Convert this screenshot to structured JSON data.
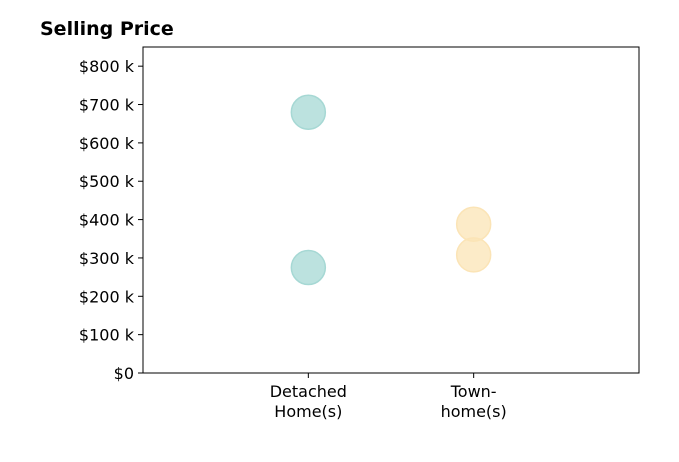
{
  "chart_data": {
    "type": "scatter",
    "title": "Selling Price",
    "xlabel": "",
    "ylabel": "",
    "categories": [
      "Detached\nHome(s)",
      "Town-\nhome(s)"
    ],
    "y_ticks": [
      "$0",
      "$100 k",
      "$200 k",
      "$300 k",
      "$400 k",
      "$500 k",
      "$600 k",
      "$700 k",
      "$800 k"
    ],
    "y_tick_values": [
      0,
      100000,
      200000,
      300000,
      400000,
      500000,
      600000,
      700000,
      800000
    ],
    "ylim": [
      0,
      850000
    ],
    "xlim": [
      -1,
      2
    ],
    "grid": false,
    "points": [
      {
        "category": "Detached\nHome(s)",
        "value": 680000,
        "color": "#a6d8d4"
      },
      {
        "category": "Detached\nHome(s)",
        "value": 275000,
        "color": "#a6d8d4"
      },
      {
        "category": "Town-\nhome(s)",
        "value": 388000,
        "color": "#fbe4b6"
      },
      {
        "category": "Town-\nhome(s)",
        "value": 308000,
        "color": "#fbe4b6"
      }
    ]
  }
}
